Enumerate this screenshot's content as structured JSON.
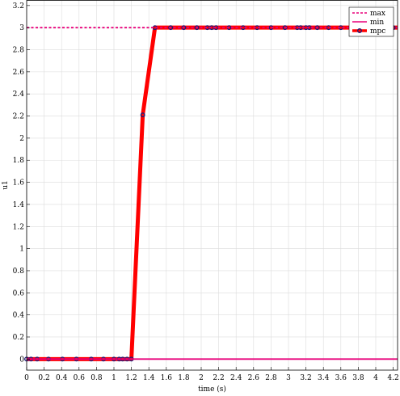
{
  "chart_data": {
    "type": "line",
    "xlabel": "time (s)",
    "ylabel": "u1",
    "xlim": [
      0,
      4.25
    ],
    "ylim": [
      -0.1,
      3.25
    ],
    "grid": true,
    "legend_position": "top-right",
    "x_ticks": [
      "0",
      "0.2",
      "0.4",
      "0.6",
      "0.8",
      "1",
      "1.2",
      "1.4",
      "1.6",
      "1.8",
      "2",
      "2.2",
      "2.4",
      "2.6",
      "2.8",
      "3",
      "3.2",
      "3.4",
      "3.6",
      "3.8",
      "4",
      "4.2"
    ],
    "y_ticks": [
      "0",
      "0.2",
      "0.4",
      "0.6",
      "0.8",
      "1",
      "1.2",
      "1.4",
      "1.6",
      "1.8",
      "2",
      "2.2",
      "2.4",
      "2.6",
      "2.8",
      "3",
      "3.2"
    ],
    "series": [
      {
        "name": "max",
        "style": "dashed",
        "color": "#e8007a",
        "x": [
          0,
          4.25
        ],
        "y": [
          3,
          3
        ]
      },
      {
        "name": "min",
        "style": "solid",
        "color": "#e8007a",
        "x": [
          0,
          4.25
        ],
        "y": [
          0,
          0
        ]
      },
      {
        "name": "mpc",
        "style": "solid-with-markers",
        "color": "#ff0000",
        "marker_color": "#1a1a7a",
        "x": [
          0,
          0.05,
          0.12,
          0.25,
          0.41,
          0.57,
          0.74,
          0.88,
          1.0,
          1.06,
          1.1,
          1.15,
          1.2,
          1.33,
          1.47,
          1.65,
          1.8,
          1.95,
          2.07,
          2.12,
          2.17,
          2.32,
          2.48,
          2.64,
          2.8,
          2.96,
          3.1,
          3.14,
          3.2,
          3.24,
          3.33,
          3.46,
          3.6,
          3.76,
          3.92,
          4.06,
          4.2,
          4.25
        ],
        "y": [
          0,
          0,
          0,
          0,
          0,
          0,
          0,
          0,
          0,
          0,
          0,
          0,
          0,
          2.21,
          3,
          3,
          3,
          3,
          3,
          3,
          3,
          3,
          3,
          3,
          3,
          3,
          3,
          3,
          3,
          3,
          3,
          3,
          3,
          3,
          3,
          3,
          3,
          3
        ]
      }
    ]
  }
}
